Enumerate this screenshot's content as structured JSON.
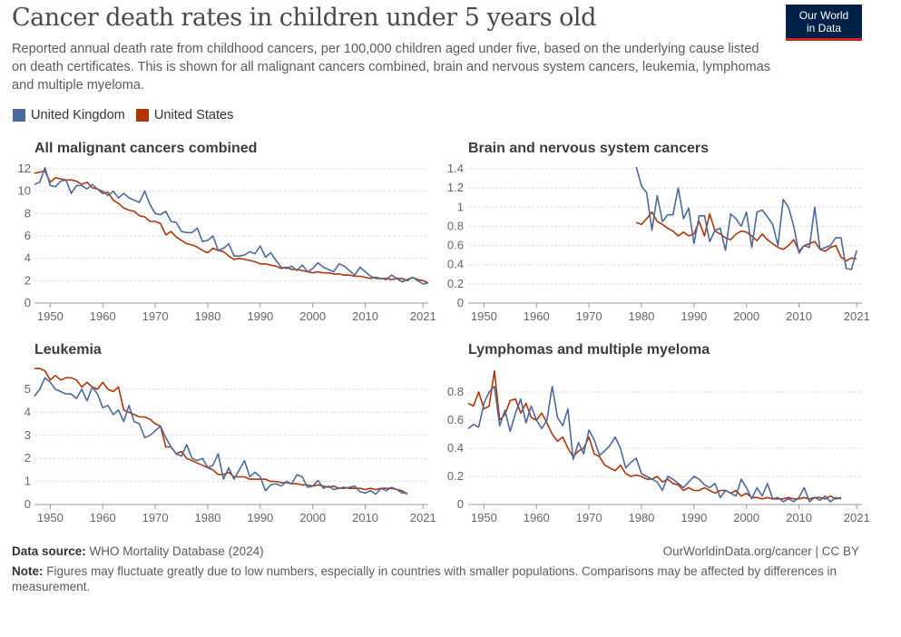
{
  "header": {
    "title": "Cancer death rates in children under 5 years old",
    "subtitle": "Reported annual death rate from childhood cancers, per 100,000 children aged under five, based on the underlying cause listed on death certificates. This is shown for all malignant cancers combined, brain and nervous system cancers, leukemia, lymphomas and multiple myeloma.",
    "logo_line1": "Our World",
    "logo_line2": "in Data"
  },
  "legend": [
    {
      "label": "United Kingdom",
      "color": "#4c6a9c"
    },
    {
      "label": "United States",
      "color": "#b13507"
    }
  ],
  "footer": {
    "source_label": "Data source:",
    "source_text": "WHO Mortality Database (2024)",
    "url_text": "OurWorldinData.org/cancer | CC BY",
    "note_label": "Note:",
    "note_text": "Figures may fluctuate greatly due to low numbers, especially in countries with smaller populations. Comparisons may be affected by differences in measurement."
  },
  "chart_data": [
    {
      "type": "line",
      "title": "All malignant cancers combined",
      "xticks": [
        1950,
        1960,
        1970,
        1980,
        1990,
        2000,
        2010,
        2021
      ],
      "xlim": [
        1947,
        2022
      ],
      "yticks": [
        0,
        2,
        4,
        6,
        8,
        10,
        12
      ],
      "ylim": [
        0,
        12
      ],
      "series": [
        {
          "name": "United Kingdom",
          "color": "#4c6a9c",
          "x_start": 1947,
          "values": [
            10.6,
            10.8,
            12.1,
            10.5,
            10.4,
            10.9,
            11.0,
            9.8,
            10.5,
            10.5,
            10.2,
            10.6,
            10.2,
            10.0,
            9.6,
            10.0,
            9.4,
            9.8,
            9.4,
            9.2,
            9.0,
            10.0,
            8.8,
            8.0,
            7.9,
            8.2,
            7.3,
            7.2,
            6.4,
            6.3,
            6.3,
            6.7,
            5.5,
            5.6,
            6.0,
            4.7,
            4.9,
            5.3,
            4.2,
            4.2,
            4.3,
            4.6,
            4.4,
            5.1,
            4.1,
            4.5,
            3.8,
            3.2,
            3.1,
            3.3,
            2.9,
            3.4,
            2.8,
            3.1,
            3.6,
            3.2,
            3.0,
            2.8,
            3.5,
            3.3,
            2.9,
            2.5,
            3.2,
            2.8,
            2.4,
            2.2,
            2.2,
            2.1,
            2.5,
            2.2,
            1.9,
            2.1,
            2.3,
            2.0,
            1.7,
            1.8
          ]
        },
        {
          "name": "United States",
          "color": "#b13507",
          "x_start": 1947,
          "values": [
            11.6,
            11.7,
            11.8,
            10.8,
            11.2,
            11.1,
            11.0,
            11.0,
            10.9,
            10.6,
            10.8,
            10.3,
            10.2,
            9.8,
            9.9,
            9.2,
            8.9,
            8.5,
            8.3,
            8.2,
            7.8,
            7.7,
            7.3,
            7.3,
            7.1,
            6.1,
            6.4,
            5.9,
            5.6,
            5.3,
            5.2,
            5.0,
            4.7,
            4.5,
            4.9,
            4.7,
            4.6,
            4.2,
            3.9,
            4.0,
            3.9,
            3.8,
            3.7,
            3.5,
            3.5,
            3.4,
            3.3,
            3.1,
            3.2,
            3.0,
            3.0,
            2.9,
            2.8,
            2.7,
            2.8,
            2.7,
            2.7,
            2.6,
            2.6,
            2.5,
            2.5,
            2.4,
            2.4,
            2.3,
            2.2,
            2.3,
            2.2,
            2.2,
            2.1,
            2.2,
            2.2,
            2.0,
            2.3,
            2.1,
            2.0,
            1.8
          ]
        }
      ]
    },
    {
      "type": "line",
      "title": "Brain and nervous system cancers",
      "xticks": [
        1950,
        1960,
        1970,
        1980,
        1990,
        2000,
        2010,
        2021
      ],
      "xlim": [
        1947,
        2022
      ],
      "yticks": [
        0,
        0.2,
        0.4,
        0.6,
        0.8,
        1,
        1.2,
        1.4
      ],
      "ylim": [
        0,
        1.4
      ],
      "series": [
        {
          "name": "United Kingdom",
          "color": "#4c6a9c",
          "x_start": 1979,
          "values": [
            1.42,
            1.22,
            1.15,
            0.76,
            1.12,
            0.85,
            0.92,
            0.92,
            1.2,
            0.88,
            0.99,
            0.62,
            0.91,
            0.91,
            0.64,
            0.76,
            0.78,
            0.55,
            0.93,
            0.88,
            0.8,
            0.95,
            0.58,
            0.95,
            0.97,
            0.9,
            0.82,
            0.6,
            1.08,
            1.0,
            0.8,
            0.52,
            0.6,
            0.58,
            1.0,
            0.56,
            0.58,
            0.6,
            0.68,
            0.68,
            0.36,
            0.35,
            0.55
          ]
        },
        {
          "name": "United States",
          "color": "#b13507",
          "x_start": 1979,
          "values": [
            0.84,
            0.82,
            0.88,
            0.95,
            0.85,
            0.82,
            0.78,
            0.75,
            0.7,
            0.74,
            0.7,
            0.72,
            0.85,
            0.7,
            0.93,
            0.75,
            0.72,
            0.68,
            0.66,
            0.72,
            0.75,
            0.74,
            0.7,
            0.65,
            0.72,
            0.66,
            0.62,
            0.58,
            0.56,
            0.6,
            0.66,
            0.54,
            0.6,
            0.62,
            0.64,
            0.56,
            0.54,
            0.58,
            0.6,
            0.48,
            0.44,
            0.47,
            0.46
          ]
        }
      ]
    },
    {
      "type": "line",
      "title": "Leukemia",
      "xticks": [
        1950,
        1960,
        1970,
        1980,
        1990,
        2000,
        2010,
        2021
      ],
      "xlim": [
        1947,
        2022
      ],
      "yticks": [
        0,
        1,
        2,
        3,
        4,
        5
      ],
      "ylim": [
        0,
        6
      ],
      "series": [
        {
          "name": "United Kingdom",
          "color": "#4c6a9c",
          "x_start": 1947,
          "values": [
            4.7,
            5.0,
            5.5,
            5.3,
            5.0,
            4.9,
            4.8,
            4.8,
            4.6,
            5.0,
            4.5,
            5.1,
            4.8,
            4.2,
            4.3,
            3.9,
            4.1,
            3.6,
            4.3,
            3.6,
            3.5,
            2.9,
            3.0,
            3.2,
            3.4,
            2.9,
            2.5,
            2.2,
            2.1,
            2.6,
            2.0,
            1.9,
            2.0,
            1.6,
            1.7,
            2.2,
            1.1,
            1.6,
            1.1,
            1.5,
            1.9,
            1.2,
            1.4,
            1.2,
            0.6,
            0.85,
            0.9,
            0.8,
            1.0,
            0.9,
            1.3,
            1.2,
            0.75,
            0.8,
            1.05,
            0.7,
            0.8,
            0.65,
            0.7,
            0.7,
            0.75,
            0.8,
            0.55,
            0.5,
            0.6,
            0.45,
            0.7,
            0.6,
            0.75,
            0.65,
            0.5,
            0.5
          ]
        },
        {
          "name": "United States",
          "color": "#b13507",
          "x_start": 1947,
          "values": [
            5.9,
            5.9,
            5.8,
            5.4,
            5.6,
            5.4,
            5.5,
            5.5,
            5.4,
            5.1,
            5.3,
            5.1,
            5.0,
            5.3,
            5.0,
            4.9,
            5.1,
            4.1,
            4.0,
            3.9,
            3.8,
            3.8,
            3.7,
            3.5,
            3.4,
            2.5,
            2.5,
            2.2,
            2.3,
            2.0,
            1.9,
            1.8,
            1.7,
            1.6,
            1.5,
            1.3,
            1.3,
            1.4,
            1.2,
            1.2,
            1.2,
            1.1,
            1.1,
            1.1,
            1.1,
            1.0,
            1.0,
            0.95,
            0.95,
            0.9,
            0.9,
            0.85,
            0.85,
            0.8,
            0.85,
            0.8,
            0.75,
            0.8,
            0.7,
            0.75,
            0.7,
            0.7,
            0.7,
            0.65,
            0.7,
            0.65,
            0.7,
            0.7,
            0.7,
            0.65,
            0.6,
            0.45
          ]
        }
      ]
    },
    {
      "type": "line",
      "title": "Lymphomas and multiple myeloma",
      "xticks": [
        1950,
        1960,
        1970,
        1980,
        1990,
        2000,
        2010,
        2021
      ],
      "xlim": [
        1947,
        2022
      ],
      "yticks": [
        0,
        0.2,
        0.4,
        0.6,
        0.8
      ],
      "ylim": [
        0,
        0.95
      ],
      "series": [
        {
          "name": "United Kingdom",
          "color": "#4c6a9c",
          "x_start": 1947,
          "values": [
            0.54,
            0.57,
            0.55,
            0.72,
            0.8,
            0.84,
            0.56,
            0.67,
            0.52,
            0.65,
            0.75,
            0.58,
            0.7,
            0.6,
            0.54,
            0.6,
            0.84,
            0.62,
            0.56,
            0.68,
            0.32,
            0.44,
            0.36,
            0.53,
            0.46,
            0.35,
            0.38,
            0.42,
            0.48,
            0.4,
            0.26,
            0.3,
            0.33,
            0.22,
            0.2,
            0.18,
            0.16,
            0.1,
            0.2,
            0.18,
            0.15,
            0.12,
            0.16,
            0.2,
            0.18,
            0.14,
            0.12,
            0.15,
            0.05,
            0.1,
            0.08,
            0.06,
            0.18,
            0.12,
            0.04,
            0.12,
            0.06,
            0.15,
            0.04,
            0.05,
            0.02,
            0.04,
            0.02,
            0.05,
            0.12,
            0.02,
            0.05,
            0.03,
            0.06,
            0.02,
            0.05,
            0.04
          ]
        },
        {
          "name": "United States",
          "color": "#b13507",
          "x_start": 1947,
          "values": [
            0.72,
            0.7,
            0.8,
            0.68,
            0.7,
            0.95,
            0.6,
            0.64,
            0.74,
            0.75,
            0.65,
            0.72,
            0.62,
            0.6,
            0.65,
            0.58,
            0.5,
            0.45,
            0.48,
            0.4,
            0.34,
            0.38,
            0.4,
            0.48,
            0.36,
            0.34,
            0.28,
            0.26,
            0.24,
            0.28,
            0.22,
            0.2,
            0.21,
            0.2,
            0.18,
            0.18,
            0.2,
            0.16,
            0.18,
            0.15,
            0.14,
            0.1,
            0.12,
            0.1,
            0.1,
            0.12,
            0.1,
            0.08,
            0.1,
            0.1,
            0.08,
            0.1,
            0.06,
            0.08,
            0.05,
            0.05,
            0.04,
            0.05,
            0.04,
            0.04,
            0.04,
            0.05,
            0.04,
            0.04,
            0.05,
            0.04,
            0.05,
            0.05,
            0.04,
            0.06,
            0.04,
            0.05
          ]
        }
      ]
    }
  ]
}
